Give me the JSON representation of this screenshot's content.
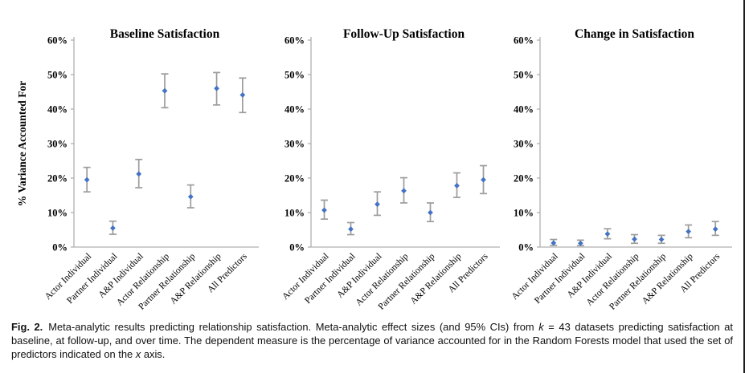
{
  "figure": {
    "y_axis_title": "% Variance Accounted For",
    "colors": {
      "marker": "#4472c4",
      "error_bar": "#9c9c9c",
      "axis": "#b0b0b0",
      "text": "#000000"
    }
  },
  "caption": {
    "parts": [
      {
        "style": "bold",
        "text": "Fig. 2."
      },
      {
        "style": "normal",
        "text": "Meta-analytic results predicting relationship satisfaction. Meta-analytic effect sizes (and 95% CIs) from "
      },
      {
        "style": "italic",
        "text": "k"
      },
      {
        "style": "normal",
        "text": " = 43 datasets predicting satisfaction at baseline, at follow-up, and over time. The dependent measure is the percentage of variance accounted for in the Random Forests model that used the set of predictors indicated on the "
      },
      {
        "style": "italic",
        "text": "x"
      },
      {
        "style": "normal",
        "text": " axis."
      }
    ]
  },
  "chart_data": [
    {
      "type": "scatter",
      "title": "Baseline Satisfaction",
      "ylabel": "% Variance Accounted For",
      "ylim": [
        0,
        60
      ],
      "yticks": [
        "0%",
        "10%",
        "20%",
        "30%",
        "40%",
        "50%",
        "60%"
      ],
      "grid": false,
      "legend": "none",
      "categories": [
        "Actor Individual",
        "Partner Individual",
        "A&P Individual",
        "Actor Relationship",
        "Partner Relationship",
        "A&P Relationship",
        "All Predictors"
      ],
      "values": [
        19.5,
        5.5,
        21.2,
        45.3,
        14.6,
        46.0,
        44.1
      ],
      "ci_low": [
        16.0,
        3.7,
        17.2,
        40.4,
        11.4,
        41.2,
        39.0
      ],
      "ci_high": [
        23.1,
        7.5,
        25.4,
        50.2,
        18.0,
        50.6,
        49.0
      ]
    },
    {
      "type": "scatter",
      "title": "Follow-Up Satisfaction",
      "ylabel": "% Variance Accounted For",
      "ylim": [
        0,
        60
      ],
      "yticks": [
        "0%",
        "10%",
        "20%",
        "30%",
        "40%",
        "50%",
        "60%"
      ],
      "grid": false,
      "legend": "none",
      "categories": [
        "Actor Individual",
        "Partner Individual",
        "A&P Individual",
        "Actor Relationship",
        "Partner Relationship",
        "A&P Relationship",
        "All Predictors"
      ],
      "values": [
        10.7,
        5.2,
        12.4,
        16.3,
        10.0,
        17.8,
        19.5
      ],
      "ci_low": [
        8.1,
        3.6,
        9.2,
        12.8,
        7.4,
        14.4,
        15.5
      ],
      "ci_high": [
        13.6,
        7.1,
        16.0,
        20.1,
        12.8,
        21.5,
        23.6
      ]
    },
    {
      "type": "scatter",
      "title": "Change in Satisfaction",
      "ylabel": "% Variance Accounted For",
      "ylim": [
        0,
        60
      ],
      "yticks": [
        "0%",
        "10%",
        "20%",
        "30%",
        "40%",
        "50%",
        "60%"
      ],
      "grid": false,
      "legend": "none",
      "categories": [
        "Actor Individual",
        "Partner Individual",
        "A&P Individual",
        "Actor Relationship",
        "Partner Relationship",
        "A&P Relationship",
        "All Predictors"
      ],
      "values": [
        1.2,
        1.1,
        3.8,
        2.3,
        2.2,
        4.5,
        5.2
      ],
      "ci_low": [
        0.5,
        0.4,
        2.4,
        1.1,
        1.1,
        2.7,
        3.4
      ],
      "ci_high": [
        2.2,
        2.0,
        5.3,
        3.6,
        3.4,
        6.4,
        7.4
      ]
    }
  ]
}
